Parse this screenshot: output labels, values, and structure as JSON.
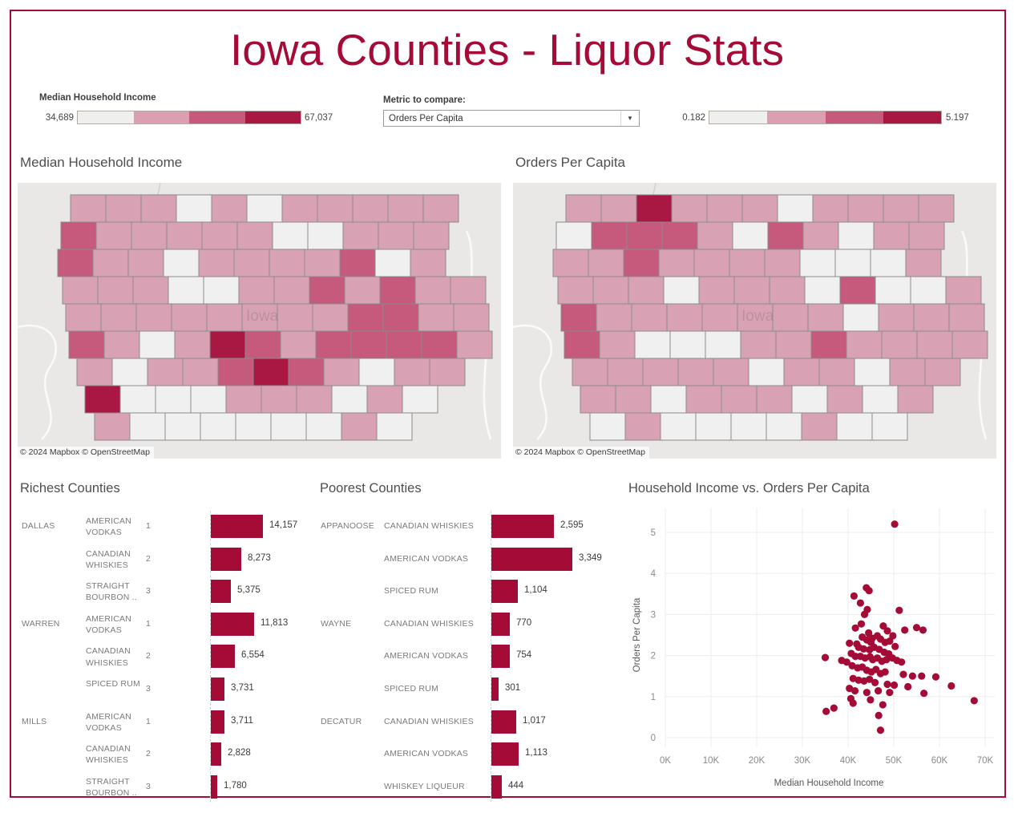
{
  "title": "Iowa Counties - Liquor Stats",
  "colors": {
    "accent": "#a50b37",
    "frame_border": "#a50b37",
    "map_background": "#e9e8e6",
    "county_stroke": "#8b8b8b",
    "palette": [
      "#f1f0f1",
      "#d9a1b4",
      "#c55a7c",
      "#a81843"
    ]
  },
  "header": {
    "income_legend": {
      "label": "Median Household Income",
      "min": "34,689",
      "max": "67,037",
      "steps": [
        "#f0eff0",
        "#db9eb2",
        "#c55a7c",
        "#a81843"
      ]
    },
    "metric_selector": {
      "label": "Metric to compare:",
      "value": "Orders Per Capita",
      "caret_icon": "▼"
    },
    "metric_legend": {
      "min": "0.182",
      "max": "5.197",
      "steps": [
        "#f0eff0",
        "#db9eb2",
        "#c55a7c",
        "#a81843"
      ]
    }
  },
  "maps": [
    {
      "title": "Median Household Income",
      "state_label": "Iowa",
      "attribution": "© 2024 Mapbox © OpenStreetMap",
      "rows": [
        {
          "x": 66,
          "cells": [
            1,
            1,
            1,
            0,
            1,
            0,
            1,
            1,
            1,
            1,
            1
          ]
        },
        {
          "x": 54,
          "cells": [
            2,
            1,
            1,
            1,
            1,
            1,
            0,
            0,
            1,
            1,
            1
          ]
        },
        {
          "x": 50,
          "cells": [
            2,
            1,
            1,
            0,
            1,
            1,
            1,
            1,
            2,
            0,
            1
          ]
        },
        {
          "x": 56,
          "cells": [
            1,
            1,
            1,
            0,
            0,
            1,
            1,
            2,
            1,
            2,
            1,
            1
          ]
        },
        {
          "x": 60,
          "cells": [
            1,
            1,
            1,
            1,
            1,
            1,
            1,
            1,
            2,
            2,
            1,
            1
          ]
        },
        {
          "x": 64,
          "cells": [
            2,
            1,
            0,
            1,
            3,
            2,
            1,
            2,
            2,
            2,
            2,
            1
          ]
        },
        {
          "x": 74,
          "cells": [
            1,
            0,
            1,
            1,
            2,
            3,
            2,
            1,
            0,
            1,
            1
          ]
        },
        {
          "x": 84,
          "cells": [
            3,
            0,
            0,
            0,
            1,
            1,
            1,
            0,
            1,
            0
          ]
        },
        {
          "x": 96,
          "cells": [
            1,
            0,
            0,
            0,
            0,
            0,
            0,
            1,
            0
          ]
        }
      ]
    },
    {
      "title": "Orders Per Capita",
      "state_label": "Iowa",
      "attribution": "© 2024 Mapbox © OpenStreetMap",
      "rows": [
        {
          "x": 66,
          "cells": [
            1,
            1,
            3,
            1,
            1,
            1,
            0,
            1,
            1,
            1,
            1
          ]
        },
        {
          "x": 54,
          "cells": [
            0,
            2,
            2,
            2,
            1,
            0,
            2,
            1,
            0,
            1,
            1
          ]
        },
        {
          "x": 50,
          "cells": [
            1,
            1,
            2,
            1,
            1,
            1,
            1,
            0,
            0,
            0,
            1
          ]
        },
        {
          "x": 56,
          "cells": [
            1,
            1,
            1,
            0,
            1,
            1,
            1,
            0,
            2,
            0,
            0,
            1
          ]
        },
        {
          "x": 60,
          "cells": [
            2,
            1,
            1,
            1,
            1,
            1,
            1,
            1,
            0,
            1,
            1,
            1
          ]
        },
        {
          "x": 64,
          "cells": [
            2,
            1,
            0,
            0,
            0,
            1,
            1,
            2,
            1,
            1,
            1,
            1
          ]
        },
        {
          "x": 74,
          "cells": [
            1,
            1,
            1,
            1,
            1,
            0,
            1,
            1,
            0,
            1,
            1
          ]
        },
        {
          "x": 84,
          "cells": [
            1,
            1,
            0,
            1,
            1,
            1,
            0,
            1,
            0,
            1
          ]
        },
        {
          "x": 96,
          "cells": [
            0,
            1,
            0,
            0,
            0,
            0,
            1,
            0,
            0
          ]
        }
      ]
    }
  ],
  "chart_data": [
    {
      "type": "bar",
      "title": "Richest Counties",
      "max_value": 14157,
      "has_rank": true,
      "rows": [
        {
          "county": "DALLAS",
          "category": "AMERICAN VODKAS",
          "rank": "1",
          "value": 14157,
          "label": "14,157"
        },
        {
          "county": "",
          "category": "CANADIAN WHISKIES",
          "rank": "2",
          "value": 8273,
          "label": "8,273"
        },
        {
          "county": "",
          "category": "STRAIGHT BOURBON ..",
          "rank": "3",
          "value": 5375,
          "label": "5,375"
        },
        {
          "county": "WARREN",
          "category": "AMERICAN VODKAS",
          "rank": "1",
          "value": 11813,
          "label": "11,813"
        },
        {
          "county": "",
          "category": "CANADIAN WHISKIES",
          "rank": "2",
          "value": 6554,
          "label": "6,554"
        },
        {
          "county": "",
          "category": "SPICED RUM",
          "rank": "3",
          "value": 3731,
          "label": "3,731"
        },
        {
          "county": "MILLS",
          "category": "AMERICAN VODKAS",
          "rank": "1",
          "value": 3711,
          "label": "3,711"
        },
        {
          "county": "",
          "category": "CANADIAN WHISKIES",
          "rank": "2",
          "value": 2828,
          "label": "2,828"
        },
        {
          "county": "",
          "category": "STRAIGHT BOURBON ..",
          "rank": "3",
          "value": 1780,
          "label": "1,780"
        }
      ]
    },
    {
      "type": "bar",
      "title": "Poorest Counties",
      "max_value": 3349,
      "has_rank": false,
      "rows": [
        {
          "county": "APPANOOSE",
          "category": "CANADIAN WHISKIES",
          "value": 2595,
          "label": "2,595"
        },
        {
          "county": "",
          "category": "AMERICAN VODKAS",
          "value": 3349,
          "label": "3,349"
        },
        {
          "county": "",
          "category": "SPICED RUM",
          "value": 1104,
          "label": "1,104"
        },
        {
          "county": "WAYNE",
          "category": "CANADIAN WHISKIES",
          "value": 770,
          "label": "770"
        },
        {
          "county": "",
          "category": "AMERICAN VODKAS",
          "value": 754,
          "label": "754"
        },
        {
          "county": "",
          "category": "SPICED RUM",
          "value": 301,
          "label": "301"
        },
        {
          "county": "DECATUR",
          "category": "CANADIAN WHISKIES",
          "value": 1017,
          "label": "1,017"
        },
        {
          "county": "",
          "category": "AMERICAN VODKAS",
          "value": 1113,
          "label": "1,113"
        },
        {
          "county": "",
          "category": "WHISKEY LIQUEUR",
          "value": 444,
          "label": "444"
        }
      ]
    },
    {
      "type": "scatter",
      "title": "Household Income vs. Orders Per Capita",
      "xlabel": "Median Household Income",
      "ylabel": "Orders Per Capita",
      "x_ticks": [
        "0K",
        "10K",
        "20K",
        "30K",
        "40K",
        "50K",
        "60K",
        "70K"
      ],
      "y_ticks": [
        "0",
        "1",
        "2",
        "3",
        "4",
        "5"
      ],
      "xlim": [
        0,
        70000
      ],
      "ylim": [
        0,
        5.5
      ],
      "grid": true,
      "points_unit": "[median_income_thousands, orders_per_capita]",
      "points": [
        [
          50.2,
          5.2
        ],
        [
          44.0,
          3.65
        ],
        [
          44.6,
          3.58
        ],
        [
          41.3,
          3.45
        ],
        [
          42.7,
          3.28
        ],
        [
          44.2,
          3.12
        ],
        [
          51.2,
          3.1
        ],
        [
          43.6,
          3.0
        ],
        [
          42.9,
          2.77
        ],
        [
          41.6,
          2.67
        ],
        [
          47.7,
          2.72
        ],
        [
          55.0,
          2.68
        ],
        [
          52.4,
          2.62
        ],
        [
          48.6,
          2.6
        ],
        [
          44.5,
          2.55
        ],
        [
          56.4,
          2.62
        ],
        [
          49.8,
          2.48
        ],
        [
          43.1,
          2.45
        ],
        [
          45.3,
          2.42
        ],
        [
          46.4,
          2.48
        ],
        [
          40.3,
          2.3
        ],
        [
          41.9,
          2.28
        ],
        [
          44.1,
          2.38
        ],
        [
          45.0,
          2.32
        ],
        [
          47.1,
          2.4
        ],
        [
          48.1,
          2.32
        ],
        [
          49.1,
          2.35
        ],
        [
          50.3,
          2.22
        ],
        [
          42.3,
          2.2
        ],
        [
          43.4,
          2.16
        ],
        [
          44.7,
          2.14
        ],
        [
          45.7,
          2.2
        ],
        [
          46.8,
          2.15
        ],
        [
          47.9,
          2.08
        ],
        [
          48.9,
          2.04
        ],
        [
          40.7,
          2.05
        ],
        [
          41.6,
          1.98
        ],
        [
          42.7,
          1.98
        ],
        [
          43.7,
          1.94
        ],
        [
          44.8,
          1.97
        ],
        [
          45.4,
          1.9
        ],
        [
          46.4,
          1.94
        ],
        [
          35.0,
          1.95
        ],
        [
          38.6,
          1.88
        ],
        [
          39.7,
          1.84
        ],
        [
          47.4,
          1.86
        ],
        [
          48.4,
          1.9
        ],
        [
          49.7,
          1.94
        ],
        [
          50.7,
          1.88
        ],
        [
          51.7,
          1.84
        ],
        [
          40.9,
          1.75
        ],
        [
          42.1,
          1.7
        ],
        [
          43.1,
          1.72
        ],
        [
          44.1,
          1.64
        ],
        [
          45.1,
          1.6
        ],
        [
          46.1,
          1.66
        ],
        [
          47.1,
          1.56
        ],
        [
          48.1,
          1.6
        ],
        [
          52.1,
          1.54
        ],
        [
          54.1,
          1.5
        ],
        [
          56.1,
          1.5
        ],
        [
          59.2,
          1.48
        ],
        [
          41.1,
          1.44
        ],
        [
          42.3,
          1.4
        ],
        [
          43.5,
          1.38
        ],
        [
          44.7,
          1.42
        ],
        [
          45.9,
          1.34
        ],
        [
          48.6,
          1.3
        ],
        [
          50.1,
          1.28
        ],
        [
          53.1,
          1.24
        ],
        [
          62.6,
          1.26
        ],
        [
          40.3,
          1.2
        ],
        [
          41.5,
          1.14
        ],
        [
          44.1,
          1.1
        ],
        [
          46.6,
          1.14
        ],
        [
          49.1,
          1.1
        ],
        [
          56.6,
          1.08
        ],
        [
          40.6,
          0.95
        ],
        [
          44.9,
          0.92
        ],
        [
          67.6,
          0.9
        ],
        [
          41.1,
          0.84
        ],
        [
          47.6,
          0.8
        ],
        [
          35.2,
          0.64
        ],
        [
          36.9,
          0.72
        ],
        [
          46.7,
          0.54
        ],
        [
          47.1,
          0.18
        ]
      ]
    }
  ]
}
